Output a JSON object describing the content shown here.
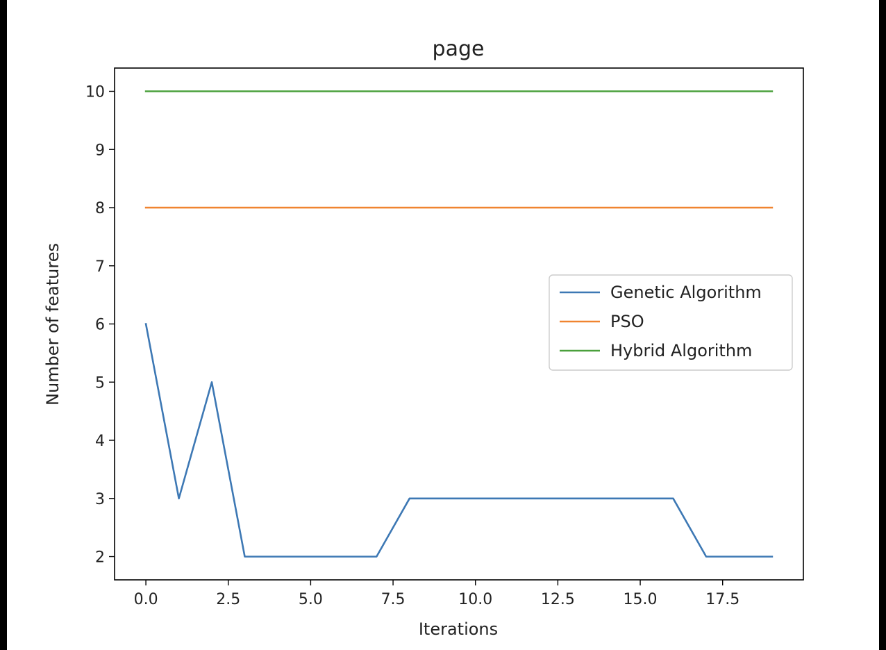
{
  "chart_data": {
    "type": "line",
    "title": "page",
    "xlabel": "Iterations",
    "ylabel": "Number of features",
    "xlim": [
      -0.95,
      19.95
    ],
    "ylim": [
      1.6,
      10.4
    ],
    "xticks": [
      0.0,
      2.5,
      5.0,
      7.5,
      10.0,
      12.5,
      15.0,
      17.5
    ],
    "xtick_labels": [
      "0.0",
      "2.5",
      "5.0",
      "7.5",
      "10.0",
      "12.5",
      "15.0",
      "17.5"
    ],
    "yticks": [
      2,
      3,
      4,
      5,
      6,
      7,
      8,
      9,
      10
    ],
    "ytick_labels": [
      "2",
      "3",
      "4",
      "5",
      "6",
      "7",
      "8",
      "9",
      "10"
    ],
    "grid": false,
    "legend_position": "center-right",
    "x": [
      0,
      1,
      2,
      3,
      4,
      5,
      6,
      7,
      8,
      9,
      10,
      11,
      12,
      13,
      14,
      15,
      16,
      17,
      18,
      19
    ],
    "series": [
      {
        "name": "Genetic Algorithm",
        "color": "#3d78b4",
        "values": [
          6,
          3,
          5,
          2,
          2,
          2,
          2,
          2,
          3,
          3,
          3,
          3,
          3,
          3,
          3,
          3,
          3,
          2,
          2,
          2
        ]
      },
      {
        "name": "PSO",
        "color": "#f08430",
        "values": [
          8,
          8,
          8,
          8,
          8,
          8,
          8,
          8,
          8,
          8,
          8,
          8,
          8,
          8,
          8,
          8,
          8,
          8,
          8,
          8
        ]
      },
      {
        "name": "Hybrid Algorithm",
        "color": "#4aa03c",
        "values": [
          10,
          10,
          10,
          10,
          10,
          10,
          10,
          10,
          10,
          10,
          10,
          10,
          10,
          10,
          10,
          10,
          10,
          10,
          10,
          10
        ]
      }
    ]
  }
}
